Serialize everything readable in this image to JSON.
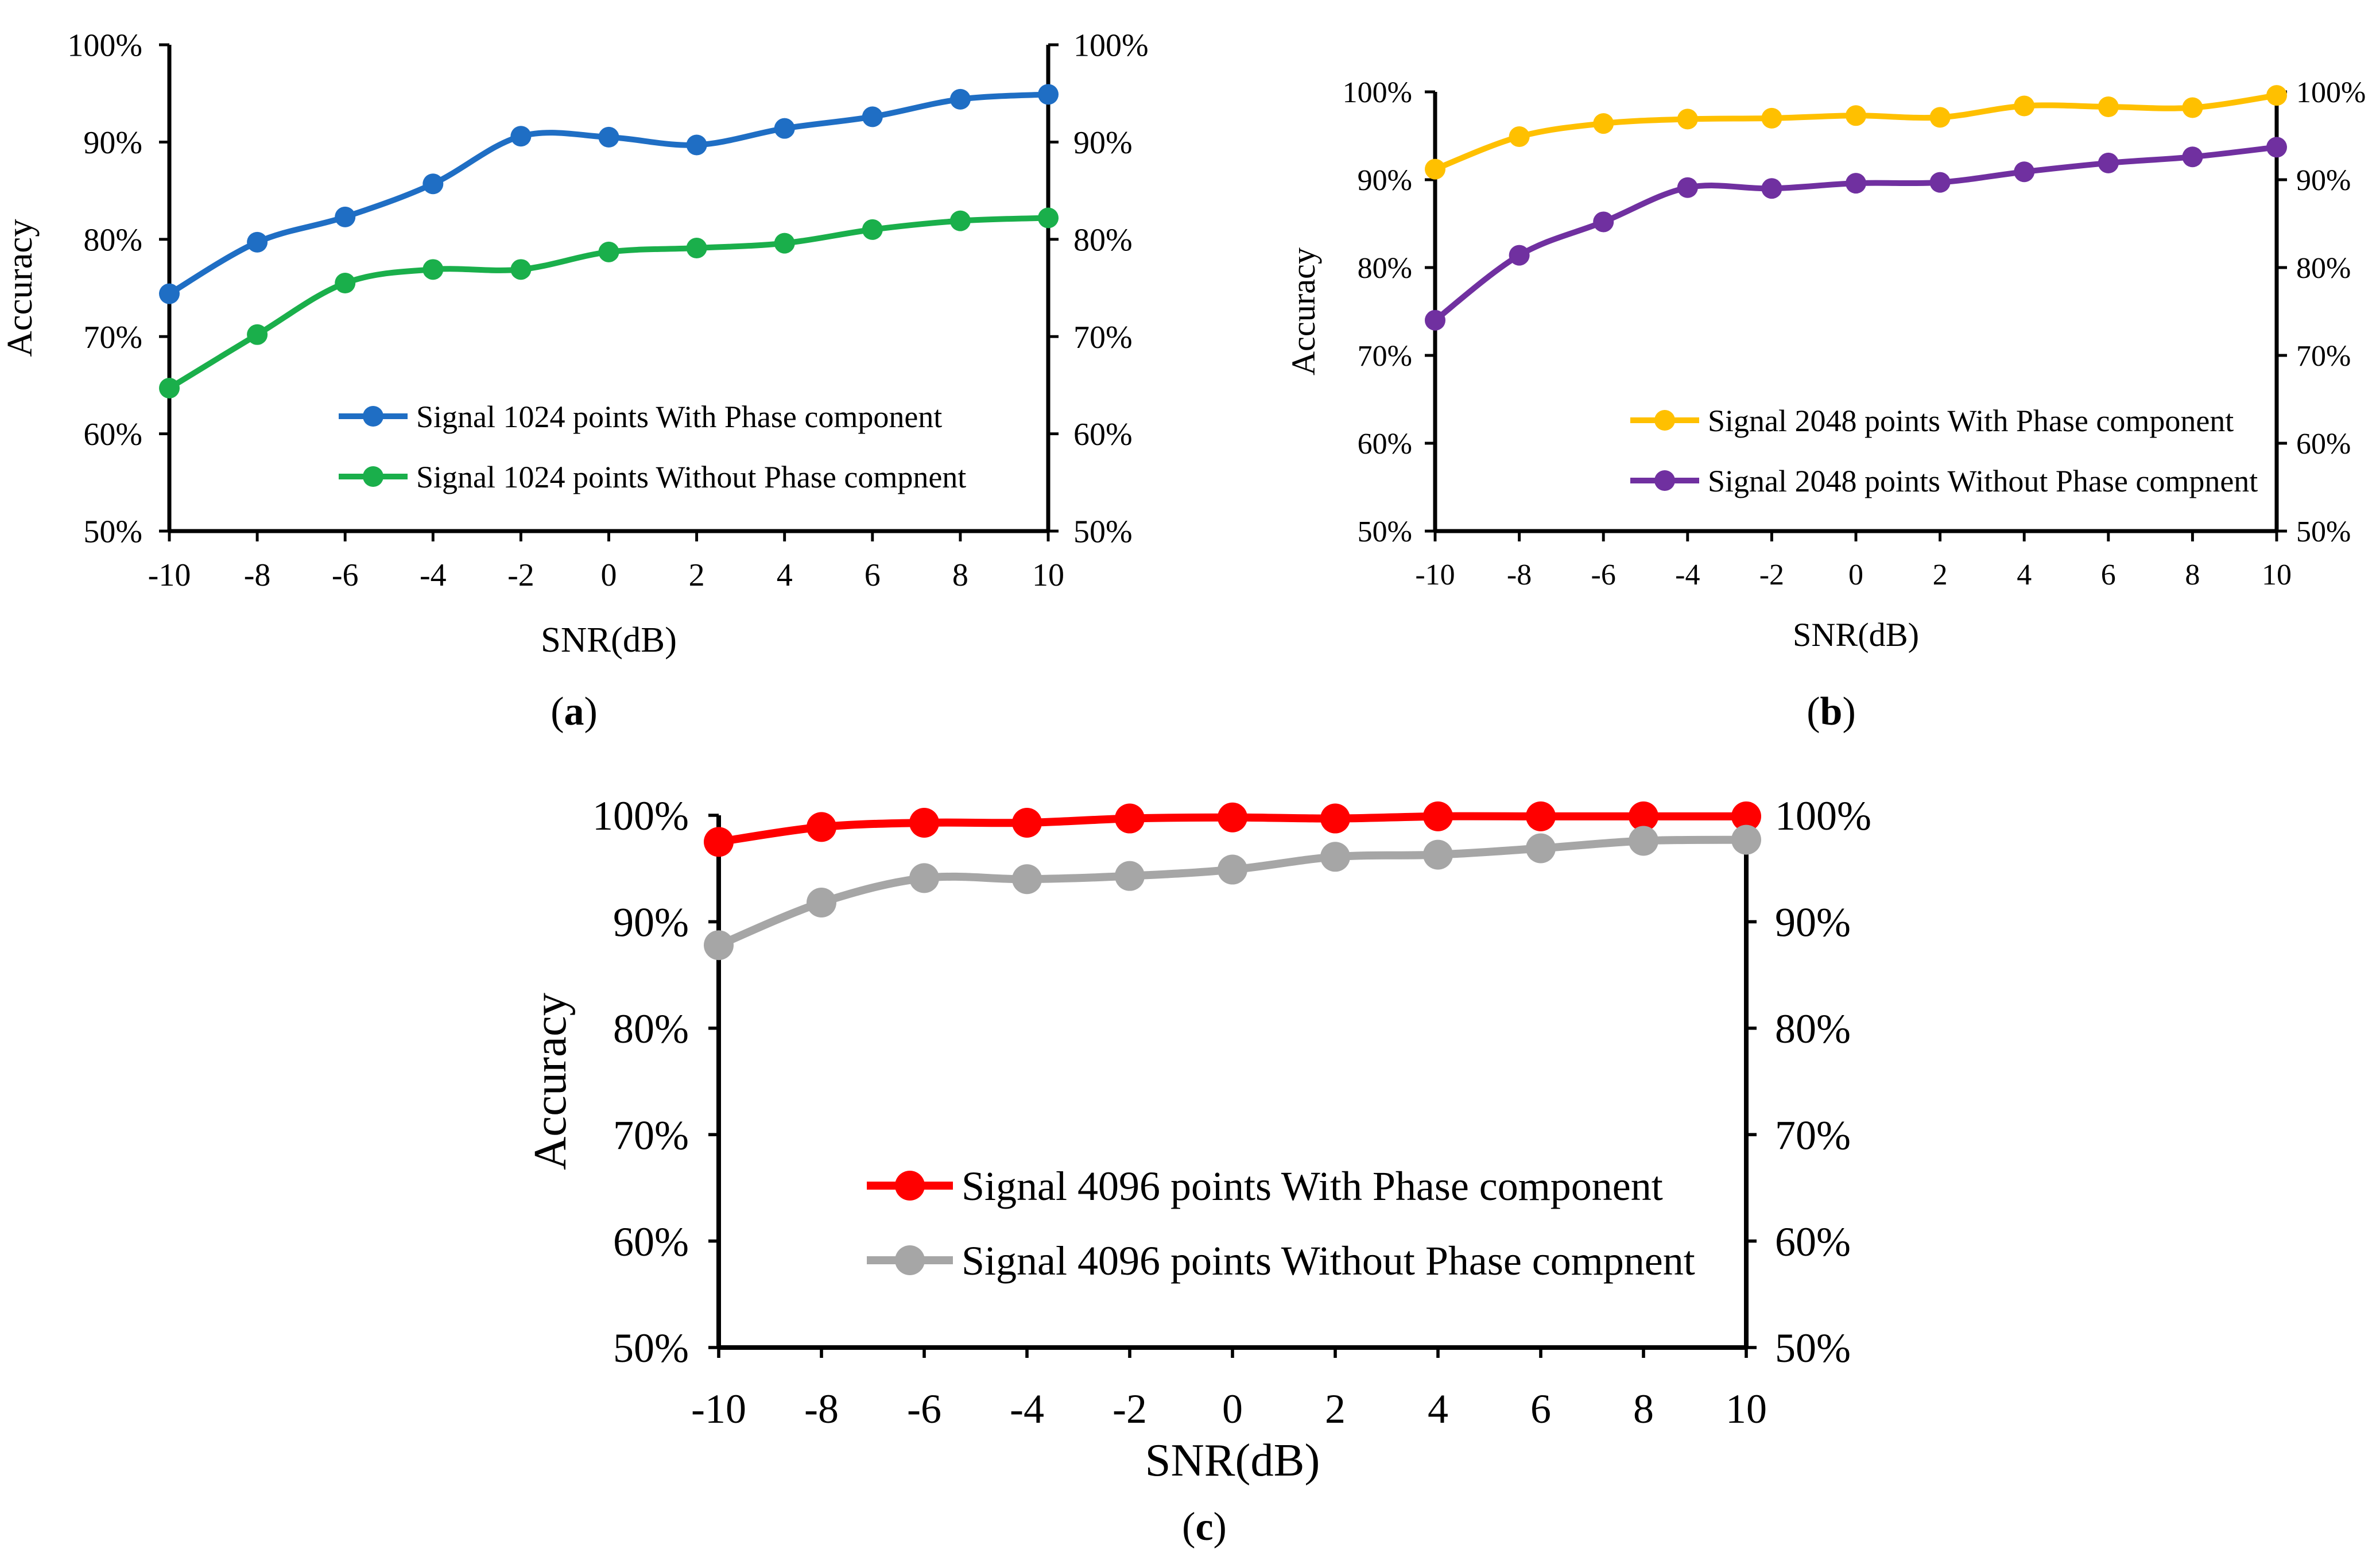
{
  "chart_data": [
    {
      "type": "line",
      "panel_label": "a",
      "xlabel": "SNR(dB)",
      "ylabel": "Accuracy",
      "x": [
        -10,
        -8,
        -6,
        -4,
        -2,
        0,
        2,
        4,
        6,
        8,
        10
      ],
      "xticks": [
        "-10",
        "-8",
        "-6",
        "-4",
        "-2",
        "0",
        "2",
        "4",
        "6",
        "8",
        "10"
      ],
      "ylim": [
        50,
        100
      ],
      "yticks": [
        "50%",
        "60%",
        "70%",
        "80%",
        "90%",
        "100%"
      ],
      "series": [
        {
          "name": "Signal 1024 points With Phase component",
          "color": "#1f6ec4",
          "values": [
            74.4,
            79.7,
            82.3,
            85.7,
            90.6,
            90.5,
            89.7,
            91.4,
            92.6,
            94.4,
            94.9
          ]
        },
        {
          "name": "Signal 1024 points Without Phase compnent",
          "color": "#1aaf4b",
          "values": [
            64.7,
            70.2,
            75.5,
            76.9,
            76.9,
            78.7,
            79.1,
            79.6,
            81.0,
            81.9,
            82.2
          ]
        }
      ]
    },
    {
      "type": "line",
      "panel_label": "b",
      "xlabel": "SNR(dB)",
      "ylabel": "Accuracy",
      "x": [
        -10,
        -8,
        -6,
        -4,
        -2,
        0,
        2,
        4,
        6,
        8,
        10
      ],
      "xticks": [
        "-10",
        "-8",
        "-6",
        "-4",
        "-2",
        "0",
        "2",
        "4",
        "6",
        "8",
        "10"
      ],
      "ylim": [
        50,
        100
      ],
      "yticks": [
        "50%",
        "60%",
        "70%",
        "80%",
        "90%",
        "100%"
      ],
      "series": [
        {
          "name": "Signal 2048 points With Phase component",
          "color": "#ffc000",
          "values": [
            91.2,
            94.9,
            96.4,
            96.9,
            97.0,
            97.3,
            97.1,
            98.4,
            98.3,
            98.2,
            99.6
          ]
        },
        {
          "name": "Signal 2048 points Without Phase compnent",
          "color": "#7030a0",
          "values": [
            74.0,
            81.4,
            85.2,
            89.1,
            89.0,
            89.6,
            89.7,
            90.9,
            91.9,
            92.6,
            93.7
          ]
        }
      ]
    },
    {
      "type": "line",
      "panel_label": "c",
      "xlabel": "SNR(dB)",
      "ylabel": "Accuracy",
      "x": [
        -10,
        -8,
        -6,
        -4,
        -2,
        0,
        2,
        4,
        6,
        8,
        10
      ],
      "xticks": [
        "-10",
        "-8",
        "-6",
        "-4",
        "-2",
        "0",
        "2",
        "4",
        "6",
        "8",
        "10"
      ],
      "ylim": [
        50,
        100
      ],
      "yticks": [
        "50%",
        "60%",
        "70%",
        "80%",
        "90%",
        "100%"
      ],
      "series": [
        {
          "name": "Signal 4096 points With Phase component",
          "color": "#ff0000",
          "values": [
            97.5,
            98.9,
            99.3,
            99.3,
            99.7,
            99.8,
            99.7,
            99.9,
            99.9,
            99.9,
            99.9
          ]
        },
        {
          "name": "Signal 4096 points Without Phase compnent",
          "color": "#a6a6a6",
          "values": [
            87.8,
            91.8,
            94.1,
            94.0,
            94.3,
            94.9,
            96.1,
            96.3,
            96.9,
            97.6,
            97.7
          ]
        }
      ]
    }
  ]
}
